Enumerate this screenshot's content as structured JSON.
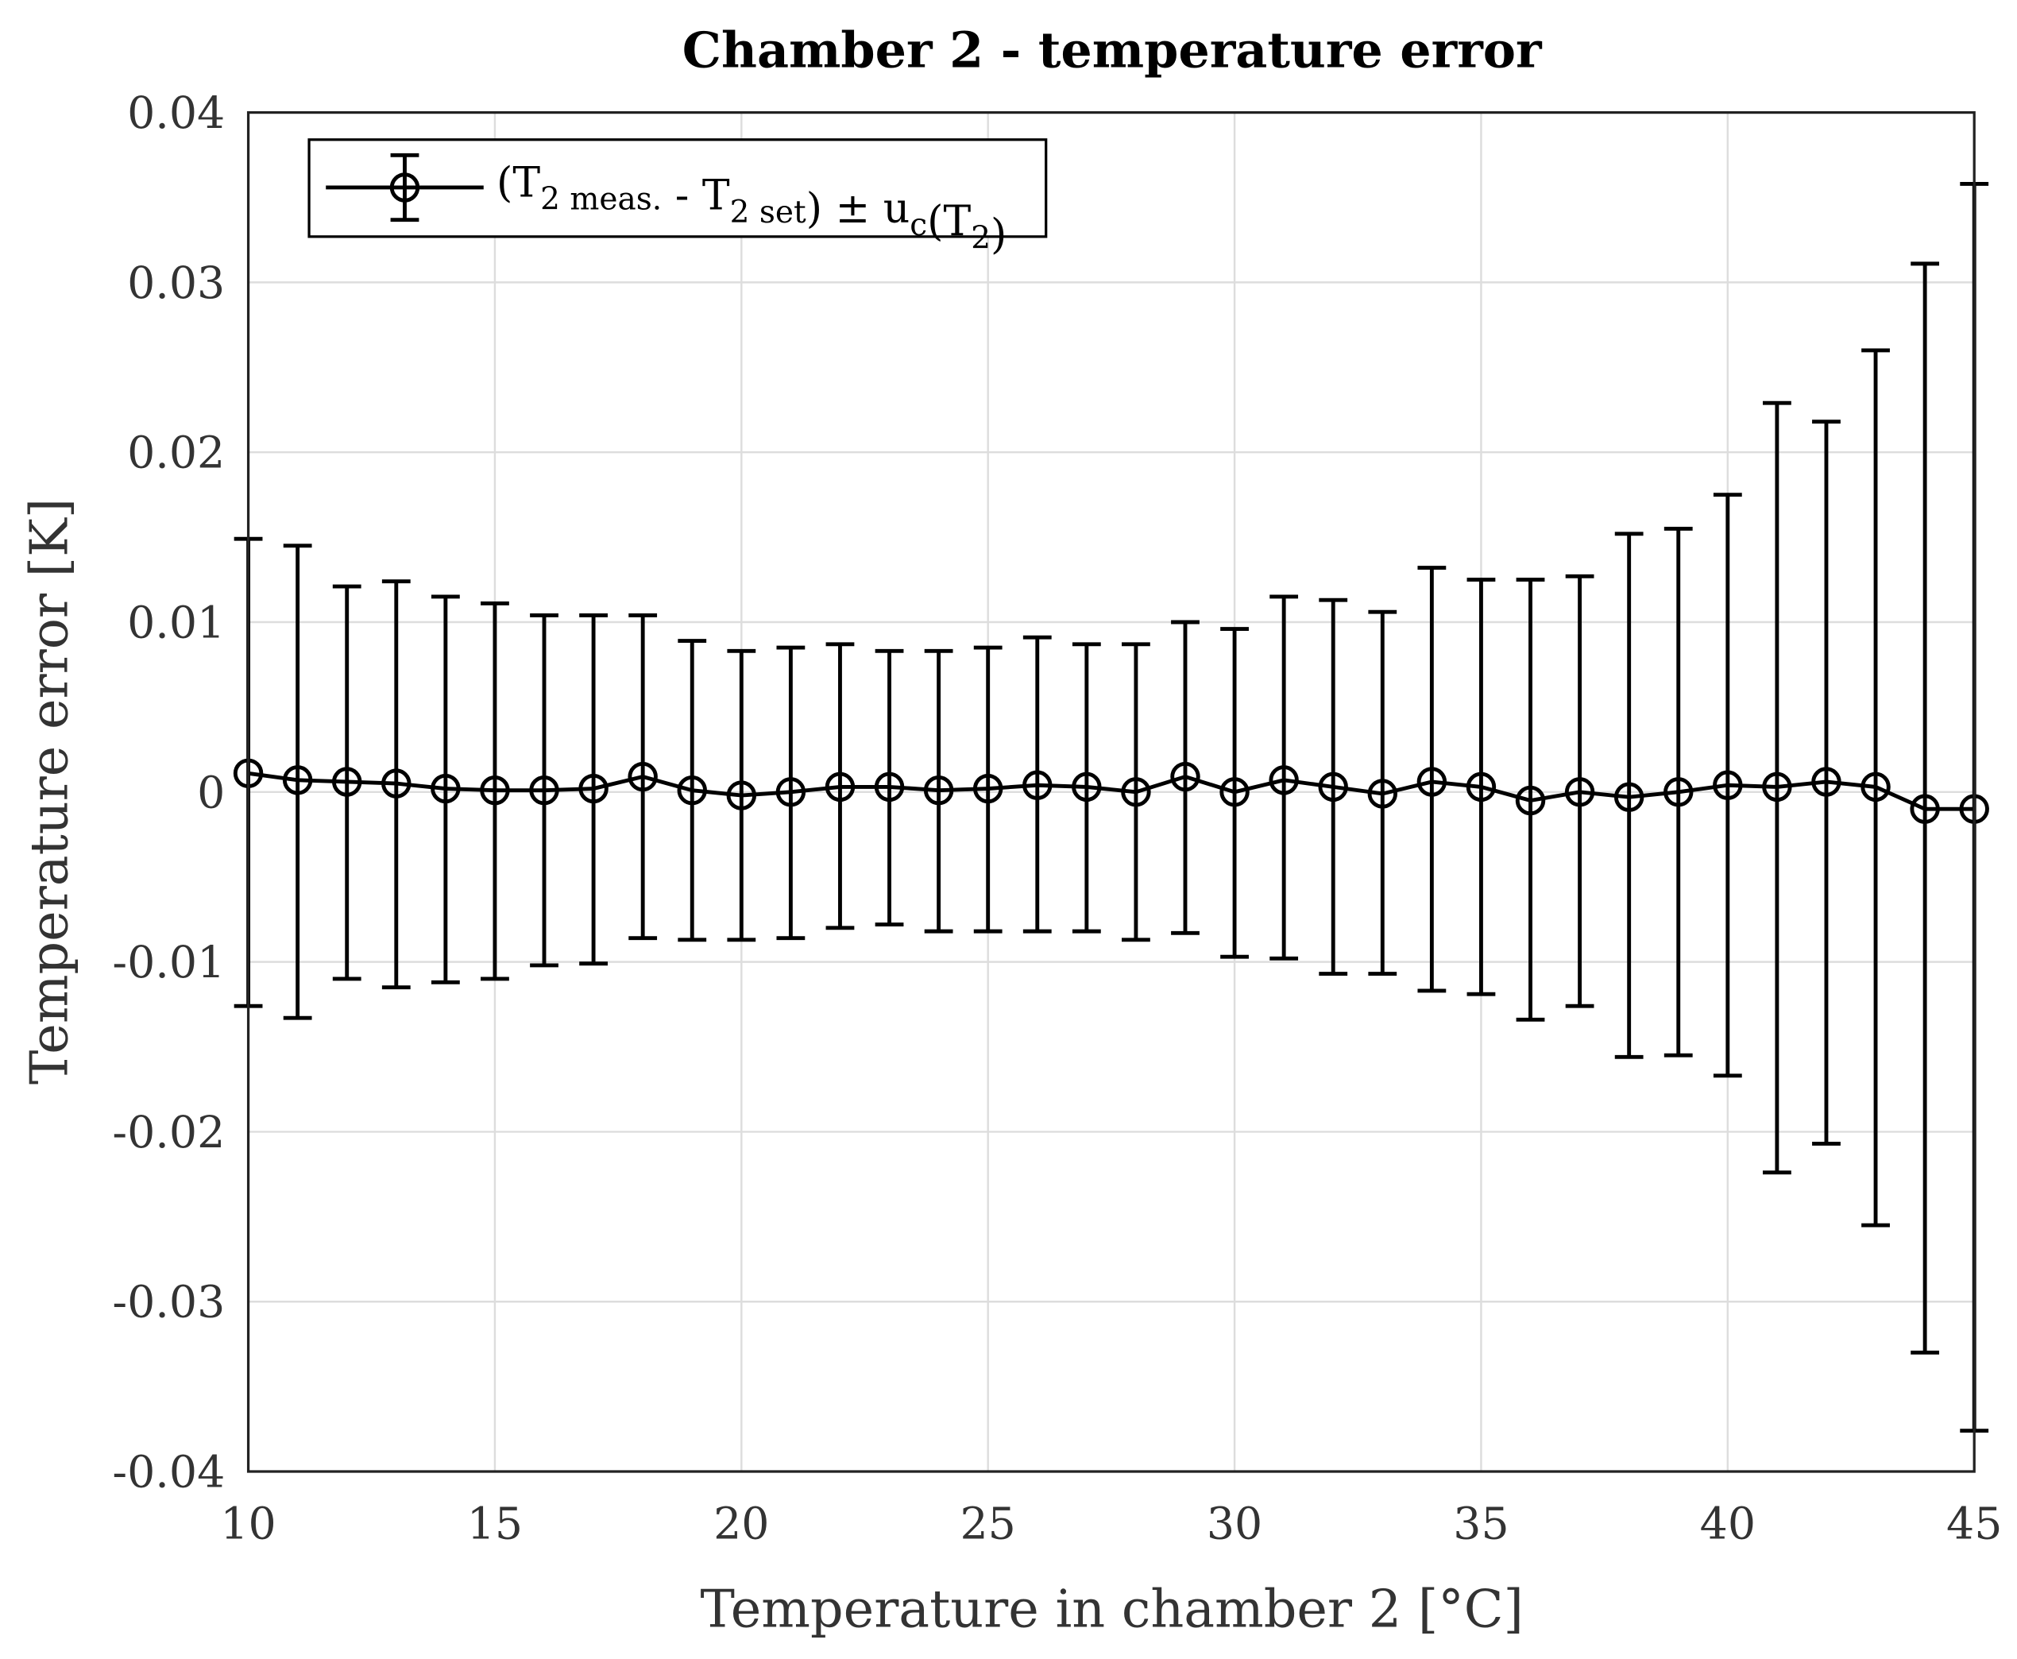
{
  "chart_data": {
    "type": "scatter",
    "title": "Chamber 2 - temperature error",
    "xlabel": "Temperature in chamber 2 [°C]",
    "ylabel": "Temperature error [K]",
    "xlim": [
      10,
      45
    ],
    "ylim": [
      -0.04,
      0.04
    ],
    "xticks": [
      10,
      15,
      20,
      25,
      30,
      35,
      40,
      45
    ],
    "yticks": [
      0.04,
      0.03,
      0.02,
      0.01,
      0,
      -0.01,
      -0.02,
      -0.03,
      -0.04
    ],
    "ytick_labels": [
      "0.04",
      "0.03",
      "0.02",
      "0.01",
      "0",
      "-0.01",
      "-0.02",
      "-0.03",
      "-0.04"
    ],
    "grid": true,
    "legend_placement": "top-left",
    "legend": [
      {
        "t": "(T"
      },
      {
        "t": "2 meas.",
        "sub": true
      },
      {
        "t": " - T"
      },
      {
        "t": "2 set",
        "sub": true
      },
      {
        "t": ") ± u"
      },
      {
        "t": "c",
        "sub": true
      },
      {
        "t": "(T"
      },
      {
        "t": "2",
        "sub": true
      },
      {
        "t": ")"
      }
    ],
    "color": "#000000",
    "marker": "circle-plus",
    "series": [
      {
        "x": [
          10,
          11,
          12,
          13,
          14,
          15,
          16,
          17,
          18,
          19,
          20,
          21,
          22,
          23,
          24,
          25,
          26,
          27,
          28,
          29,
          30,
          31,
          32,
          33,
          34,
          35,
          36,
          37,
          38,
          39,
          40,
          41,
          42,
          43,
          44,
          45
        ],
        "y": [
          0.0011,
          0.0007,
          0.0006,
          0.0005,
          0.0002,
          0.0001,
          0.0001,
          0.0002,
          0.0009,
          0.0001,
          -0.0002,
          0.0,
          0.0003,
          0.0003,
          0.0001,
          0.0002,
          0.0004,
          0.0003,
          0.0,
          0.0009,
          0.0,
          0.0007,
          0.0003,
          -0.0001,
          0.0006,
          0.0003,
          -0.0005,
          0.0,
          -0.0003,
          0.0,
          0.0004,
          0.0003,
          0.0006,
          0.0003,
          -0.001,
          -0.001
        ],
        "upper": [
          0.0149,
          0.0145,
          0.0121,
          0.0124,
          0.0115,
          0.0111,
          0.0104,
          0.0104,
          0.0104,
          0.0089,
          0.0083,
          0.0085,
          0.0087,
          0.0083,
          0.0083,
          0.0085,
          0.0091,
          0.0087,
          0.0087,
          0.01,
          0.0096,
          0.0115,
          0.0113,
          0.0106,
          0.0132,
          0.0125,
          0.0125,
          0.0127,
          0.0152,
          0.0155,
          0.0175,
          0.0229,
          0.0218,
          0.026,
          0.0311,
          0.0358
        ],
        "lower": [
          -0.0126,
          -0.0133,
          -0.011,
          -0.0115,
          -0.0112,
          -0.011,
          -0.0102,
          -0.0101,
          -0.0086,
          -0.0087,
          -0.0087,
          -0.0086,
          -0.008,
          -0.0078,
          -0.0082,
          -0.0082,
          -0.0082,
          -0.0082,
          -0.0087,
          -0.0083,
          -0.0097,
          -0.0098,
          -0.0107,
          -0.0107,
          -0.0117,
          -0.0119,
          -0.0134,
          -0.0126,
          -0.0156,
          -0.0155,
          -0.0167,
          -0.0224,
          -0.0207,
          -0.0255,
          -0.033,
          -0.0376
        ]
      }
    ]
  }
}
